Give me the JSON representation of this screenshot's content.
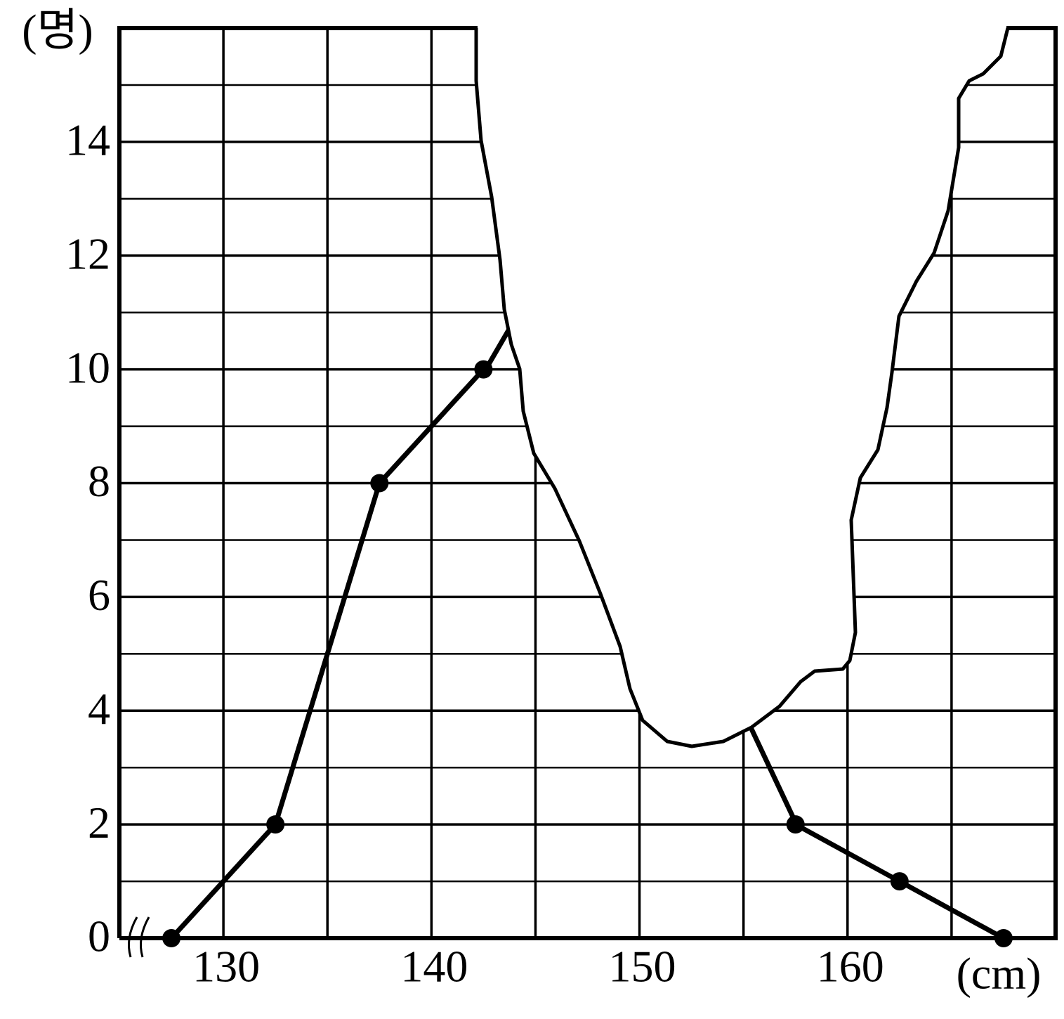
{
  "chart_data": {
    "type": "line",
    "x_label": "(cm)",
    "y_label": "(명)",
    "x": [
      127.5,
      132.5,
      137.5,
      142.5,
      147.5,
      152.5,
      157.5,
      162.5,
      167.5
    ],
    "series": [
      {
        "color": "#000000",
        "values": [
          0,
          2,
          8,
          10,
          null,
          null,
          2,
          1,
          0
        ]
      }
    ],
    "xlim": [
      125,
      170
    ],
    "ylim": [
      0,
      16
    ],
    "xticks": [
      130,
      140,
      150,
      160
    ],
    "yticks": [
      0,
      2,
      4,
      6,
      8,
      10,
      12,
      14
    ],
    "x_gridlines": [
      130,
      135,
      140,
      145,
      150,
      155,
      160,
      165
    ],
    "y_gridlines": [
      1,
      2,
      3,
      4,
      5,
      6,
      7,
      8,
      9,
      10,
      11,
      12,
      13,
      14,
      15
    ],
    "grid": true
  }
}
